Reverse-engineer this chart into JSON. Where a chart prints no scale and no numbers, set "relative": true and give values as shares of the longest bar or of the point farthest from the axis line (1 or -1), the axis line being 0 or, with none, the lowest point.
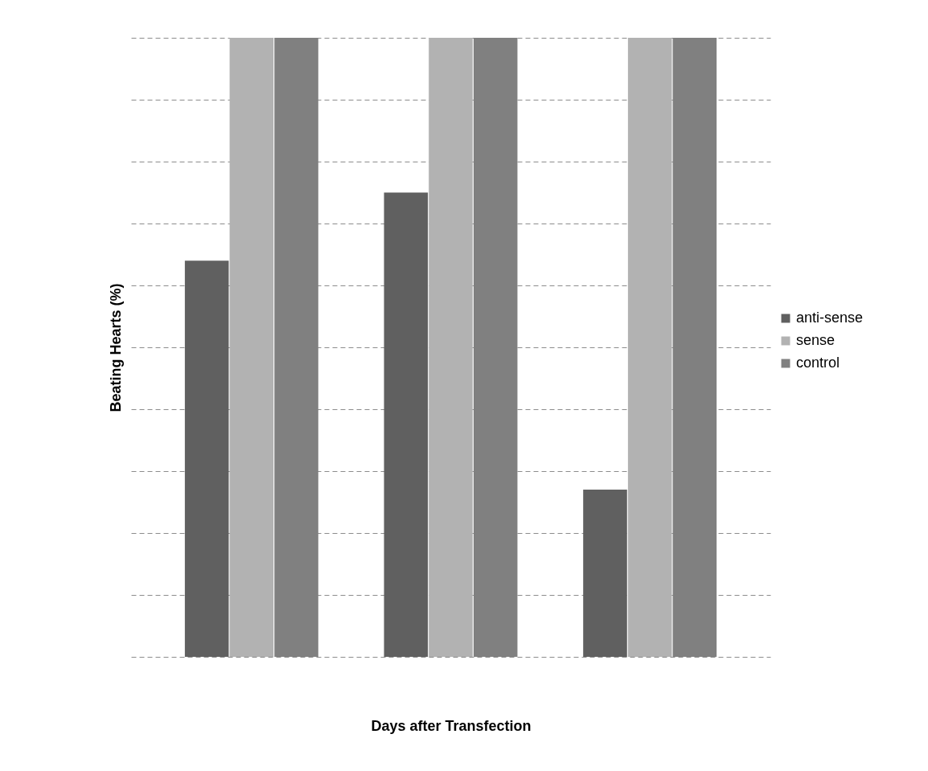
{
  "chart_data": {
    "type": "bar",
    "xlabel": "Days after Transfection",
    "ylabel": "Beating Hearts (%)",
    "categories": [
      null,
      null,
      null
    ],
    "relative": true,
    "series": [
      {
        "name": "anti-sense",
        "color": "#606060",
        "values": [
          0.64,
          0.75,
          0.27
        ]
      },
      {
        "name": "sense",
        "color": "#b2b2b2",
        "values": [
          1,
          1,
          1
        ]
      },
      {
        "name": "control",
        "color": "#808080",
        "values": [
          1,
          1,
          1
        ]
      }
    ],
    "grid": "y",
    "legend": "right"
  }
}
